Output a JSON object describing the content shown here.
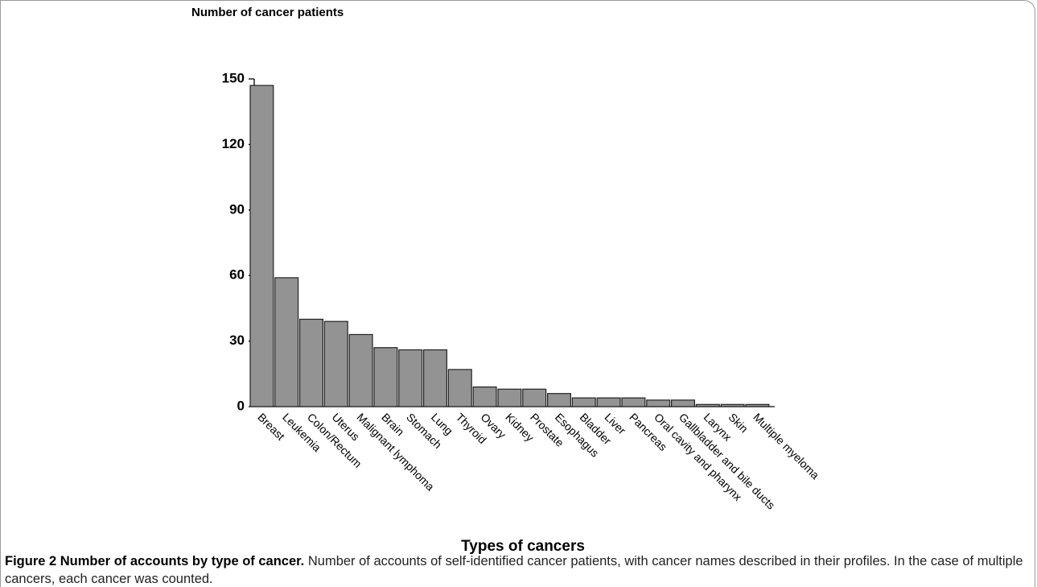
{
  "chart_data": {
    "type": "bar",
    "y_label": "Number of cancer patients",
    "x_label": "Types of cancers",
    "categories": [
      "Breast",
      "Leukemia",
      "Colon/Rectum",
      "Uterus",
      "Malignant lymphoma",
      "Brain",
      "Stomach",
      "Lung",
      "Thyroid",
      "Ovary",
      "Kidney",
      "Prostate",
      "Esophagus",
      "Bladder",
      "Liver",
      "Pancreas",
      "Oral cavity and pharynx",
      "Gallbladder and bile ducts",
      "Larynx",
      "Skin",
      "Multiple myeloma"
    ],
    "values": [
      147,
      59,
      40,
      39,
      33,
      27,
      26,
      26,
      17,
      9,
      8,
      8,
      6,
      4,
      4,
      4,
      3,
      3,
      1,
      1,
      1
    ],
    "color": "#939393",
    "ylim": [
      0,
      150
    ],
    "yticks": [
      0,
      30,
      60,
      90,
      120,
      150
    ]
  },
  "caption": {
    "title": "Figure 2 Number of accounts by type of cancer.",
    "text": "Number of accounts of self-identified cancer patients, with cancer names described in their profiles. In the case of multiple cancers, each cancer was counted."
  }
}
